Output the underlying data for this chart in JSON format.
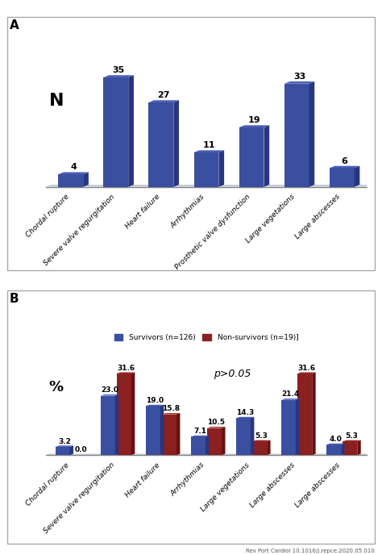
{
  "panel_a": {
    "label": "A",
    "ylabel": "N",
    "categories": [
      "Chordal rupture",
      "Severe valve regurgitation",
      "Heart failure",
      "Arrhythmias",
      "Prosthetic valve dysfunction",
      "Large vegetations",
      "Large abscesses"
    ],
    "values": [
      4,
      35,
      27,
      11,
      19,
      33,
      6
    ],
    "bar_color": "#3a4fa0",
    "bar_right_color": "#2a3580",
    "bar_top_color": "#4a5db5"
  },
  "panel_b": {
    "label": "B",
    "ylabel": "%",
    "categories": [
      "Chordal rupture",
      "Severe valve regurgitation",
      "Heart failure",
      "Arrhythmias",
      "Large vegetations",
      "Large abscesses",
      "Large abscesses"
    ],
    "survivors_values": [
      3.2,
      23.0,
      19.0,
      7.1,
      14.3,
      21.4,
      4.0
    ],
    "nonsurvivors_values": [
      0.0,
      31.6,
      15.8,
      10.5,
      5.3,
      31.6,
      5.3
    ],
    "survivors_color": "#3a4fa0",
    "survivors_right_color": "#2a3580",
    "survivors_top_color": "#4a5db5",
    "nonsurvivors_color": "#8b2020",
    "nonsurvivors_right_color": "#6a1010",
    "nonsurvivors_top_color": "#a03030",
    "legend_survivors": "Survivors (n=126)",
    "legend_nonsurvivors": "Non-survivors (n=19)]",
    "annotation": "p>0.05"
  },
  "footer": "Rev Port Cardiol 10.1016/j.repce.2020.05.010",
  "background_color": "#ffffff"
}
